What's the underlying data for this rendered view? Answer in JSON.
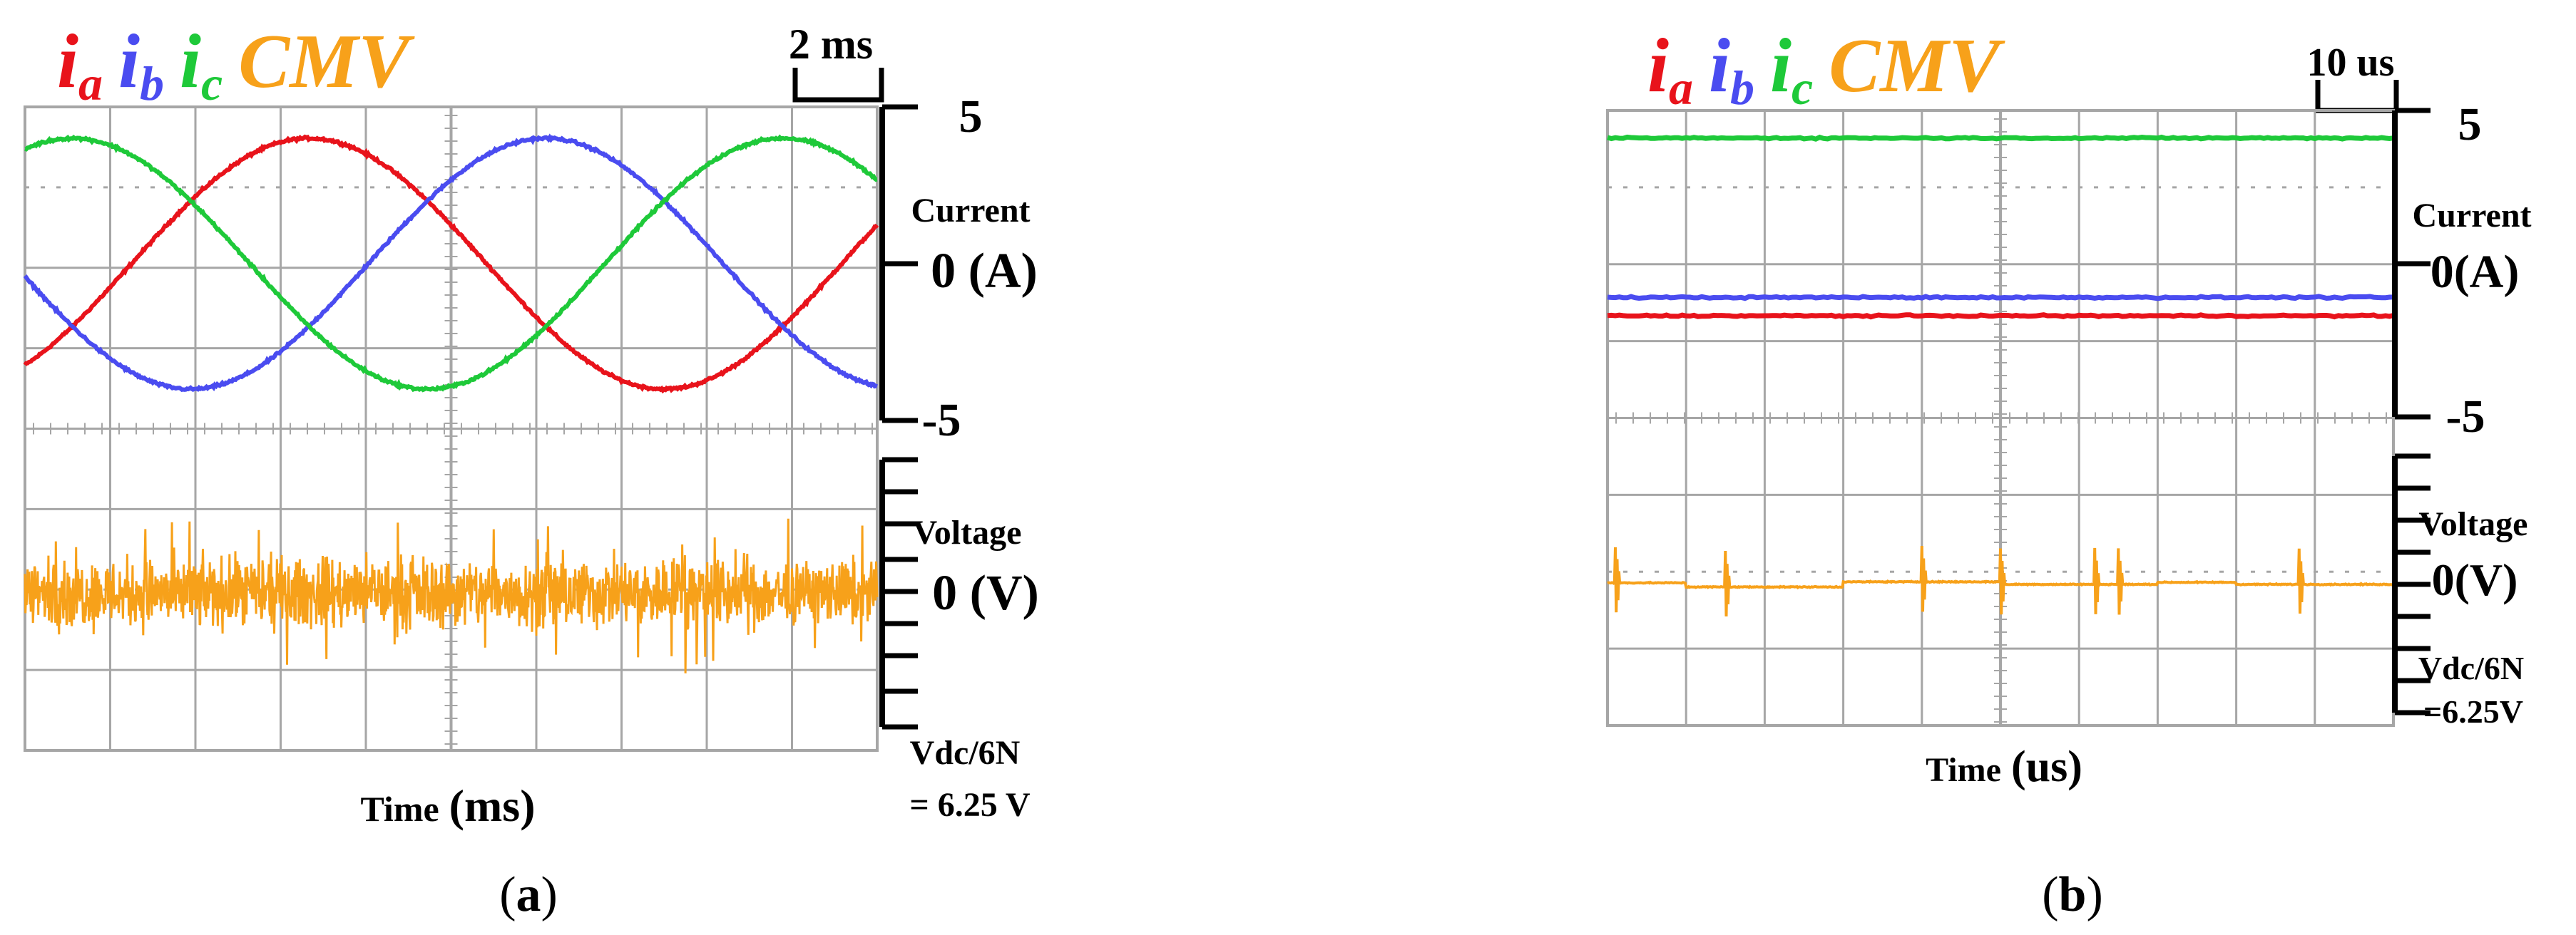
{
  "colors": {
    "ia": "#e8131b",
    "ib": "#4a4cf0",
    "ic": "#1ec939",
    "cmv": "#f7a11a",
    "grid": "#a6a6a6",
    "axis": "#000000"
  },
  "chart_data": [
    {
      "panel": "a",
      "type": "line",
      "panel_label": {
        "open": "(",
        "letter": "a",
        "close": ")"
      },
      "legend": [
        {
          "base": "i",
          "sub": "a",
          "color": "#e8131b"
        },
        {
          "base": "i",
          "sub": "b",
          "color": "#4a4cf0"
        },
        {
          "base": "i",
          "sub": "c",
          "color": "#1ec939"
        },
        {
          "base": "CMV",
          "sub": "",
          "color": "#f7a11a"
        }
      ],
      "time_scale": "2 ms",
      "xlabel": {
        "word": "Time",
        "unit": "(ms)"
      },
      "x_divisions": 10,
      "x_range_ms": [
        0,
        20
      ],
      "current_axis": {
        "label": "Current",
        "top": "5",
        "zero": "0 (A)",
        "bottom": "-5",
        "range_A": [
          -5,
          5
        ]
      },
      "voltage_axis": {
        "label": "Voltage",
        "zero": "0 (V)",
        "scale_line1": "Vdc/6N",
        "scale_line2": "= 6.25 V",
        "range_V": [
          -25,
          25
        ],
        "ticks": 7
      },
      "series": [
        {
          "name": "ia",
          "kind": "sine",
          "amplitude_A": 4.0,
          "frequency_hz": 60,
          "phase_deg": -54,
          "noise": 0.06
        },
        {
          "name": "ib",
          "kind": "sine",
          "amplitude_A": 4.0,
          "frequency_hz": 60,
          "phase_deg": -174,
          "noise": 0.06
        },
        {
          "name": "ic",
          "kind": "sine",
          "amplitude_A": 4.0,
          "frequency_hz": 60,
          "phase_deg": 66,
          "noise": 0.06
        },
        {
          "name": "CMV",
          "kind": "noise_band",
          "mean_V": 0.0,
          "band_V": 6.0,
          "spike_V": 15.0
        }
      ]
    },
    {
      "panel": "b",
      "type": "line",
      "panel_label": {
        "open": "(",
        "letter": "b",
        "close": ")"
      },
      "legend": [
        {
          "base": "i",
          "sub": "a",
          "color": "#e8131b"
        },
        {
          "base": "i",
          "sub": "b",
          "color": "#4a4cf0"
        },
        {
          "base": "i",
          "sub": "c",
          "color": "#1ec939"
        },
        {
          "base": "CMV",
          "sub": "",
          "color": "#f7a11a"
        }
      ],
      "time_scale": "10 us",
      "xlabel": {
        "word": "Time",
        "unit": "(us)"
      },
      "x_divisions": 10,
      "x_range_us": [
        0,
        100
      ],
      "current_axis": {
        "label": "Current",
        "top": "5",
        "zero": "0(A)",
        "bottom": "-5",
        "range_A": [
          -5,
          5
        ]
      },
      "voltage_axis": {
        "label": "Voltage",
        "zero": "0(V)",
        "scale_line1": "Vdc/6N",
        "scale_line2": "=6.25V",
        "range_V": [
          -25,
          25
        ],
        "ticks": 7
      },
      "series": [
        {
          "name": "ia",
          "kind": "dc",
          "value_A": -1.7
        },
        {
          "name": "ib",
          "kind": "dc",
          "value_A": -1.1
        },
        {
          "name": "ic",
          "kind": "dc",
          "value_A": 4.1
        },
        {
          "name": "CMV",
          "kind": "steps",
          "levels_V": [
            0.3,
            -0.5,
            -0.5,
            0.5,
            0.5,
            0.0,
            0.0,
            0.4,
            0.0,
            0.0
          ],
          "spike_times_us": [
            1,
            15,
            40,
            50,
            62,
            65,
            88
          ]
        }
      ]
    }
  ]
}
